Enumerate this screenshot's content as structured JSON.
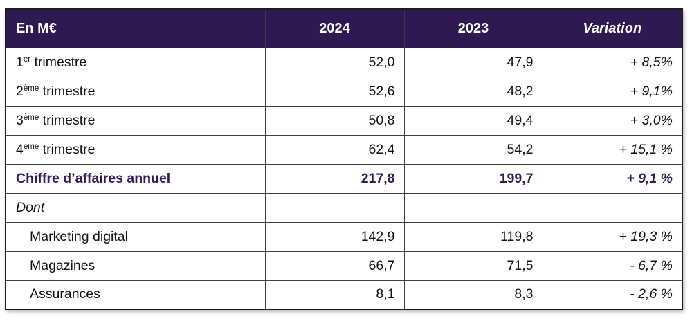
{
  "colors": {
    "header_bg": "#2E1A52",
    "header_text": "#ffffff",
    "accent_purple": "#321A5E",
    "grid_line": "#3c3c3c",
    "outer_border": "#1c1c1c",
    "body_text": "#111111"
  },
  "table": {
    "unit_header": "En M€",
    "columns": [
      {
        "label": "En M€"
      },
      {
        "label": "2024"
      },
      {
        "label": "2023"
      },
      {
        "label": "Variation"
      }
    ],
    "rows": [
      {
        "label_pre": "1",
        "label_sup": "er",
        "label_post": " trimestre",
        "v2024": "52,0",
        "v2023": "47,9",
        "variation": "+ 8,5%",
        "style": "normal"
      },
      {
        "label_pre": "2",
        "label_sup": "ème",
        "label_post": " trimestre",
        "v2024": "52,6",
        "v2023": "48,2",
        "variation": "+ 9,1%",
        "style": "normal"
      },
      {
        "label_pre": "3",
        "label_sup": "ème",
        "label_post": " trimestre",
        "v2024": "50,8",
        "v2023": "49,4",
        "variation": "+ 3,0%",
        "style": "normal"
      },
      {
        "label_pre": "4",
        "label_sup": "ème",
        "label_post": " trimestre",
        "v2024": "62,4",
        "v2023": "54,2",
        "variation": "+ 15,1 %",
        "style": "normal"
      },
      {
        "label_pre": "Chiffre d’affaires annuel",
        "label_sup": "",
        "label_post": "",
        "v2024": "217,8",
        "v2023": "199,7",
        "variation": "+ 9,1 %",
        "style": "total"
      },
      {
        "label_pre": "Dont",
        "label_sup": "",
        "label_post": "",
        "v2024": "",
        "v2023": "",
        "variation": "",
        "style": "section"
      },
      {
        "label_pre": "Marketing digital",
        "label_sup": "",
        "label_post": "",
        "v2024": "142,9",
        "v2023": "119,8",
        "variation": "+ 19,3 %",
        "style": "sub"
      },
      {
        "label_pre": "Magazines",
        "label_sup": "",
        "label_post": "",
        "v2024": "66,7",
        "v2023": "71,5",
        "variation": "- 6,7 %",
        "style": "sub"
      },
      {
        "label_pre": "Assurances",
        "label_sup": "",
        "label_post": "",
        "v2024": "8,1",
        "v2023": "8,3",
        "variation": "- 2,6 %",
        "style": "sub"
      }
    ]
  }
}
